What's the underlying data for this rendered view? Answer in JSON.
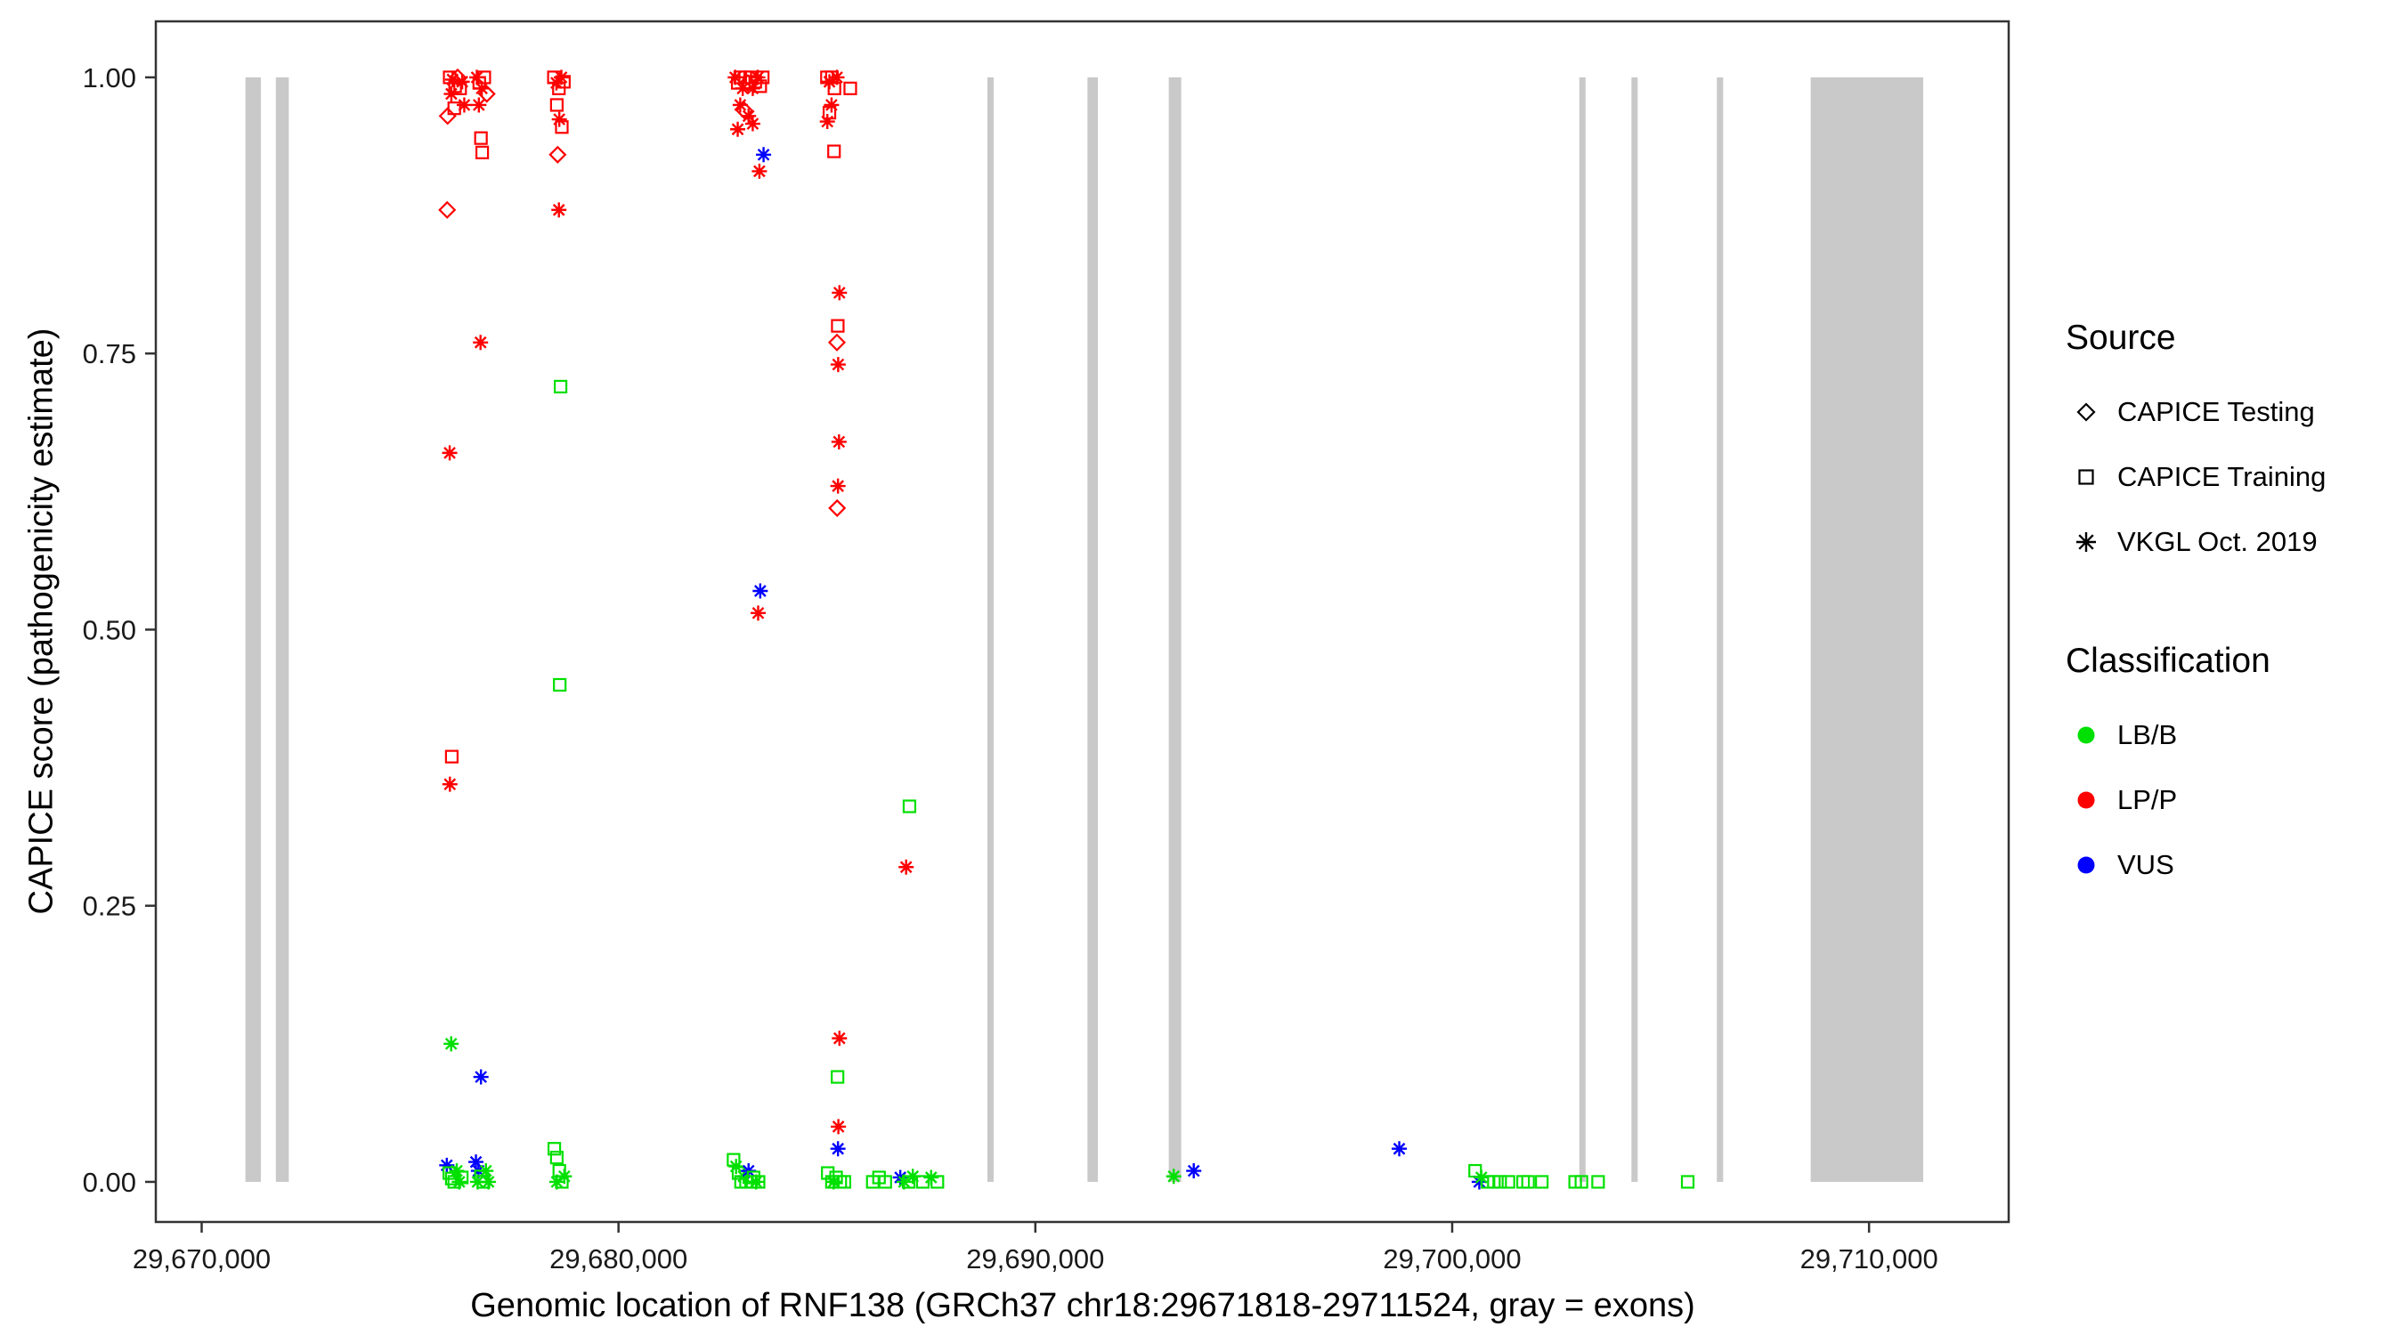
{
  "legend": {
    "source": {
      "title": "Source",
      "items": [
        {
          "label": "CAPICE Testing",
          "shape": "diamond"
        },
        {
          "label": "CAPICE Training",
          "shape": "square"
        },
        {
          "label": "VKGL Oct. 2019",
          "shape": "asterisk"
        }
      ]
    },
    "classification": {
      "title": "Classification",
      "items": [
        {
          "label": "LB/B",
          "color": "#00E000"
        },
        {
          "label": "LP/P",
          "color": "#FF0000"
        },
        {
          "label": "VUS",
          "color": "#0000FF"
        }
      ]
    }
  },
  "chart_data": {
    "type": "scatter",
    "title": "",
    "xlabel": "Genomic location of RNF138 (GRCh37 chr18:29671818-29711524, gray = exons)",
    "ylabel": "CAPICE score (pathogenicity estimate)",
    "x_domain": [
      29668900,
      29713350
    ],
    "y_domain": [
      -0.0363,
      1.0507
    ],
    "x_ticks": [
      {
        "value": 29670000,
        "label": "29,670,000"
      },
      {
        "value": 29680000,
        "label": "29,680,000"
      },
      {
        "value": 29690000,
        "label": "29,690,000"
      },
      {
        "value": 29700000,
        "label": "29,700,000"
      },
      {
        "value": 29710000,
        "label": "29,710,000"
      }
    ],
    "y_ticks": [
      {
        "value": 0.0,
        "label": "0.00"
      },
      {
        "value": 0.25,
        "label": "0.25"
      },
      {
        "value": 0.5,
        "label": "0.50"
      },
      {
        "value": 0.75,
        "label": "0.75"
      },
      {
        "value": 1.0,
        "label": "1.00"
      }
    ],
    "grid": false,
    "legend_position": "right",
    "exon_color": "#C9C9C9",
    "shape_by_source": {
      "testing": "diamond",
      "training": "square",
      "vkgl": "asterisk"
    },
    "color_by_class": {
      "LB/B": "#00E000",
      "LP/P": "#FF0000",
      "VUS": "#0000FF"
    },
    "exons": [
      [
        29671050,
        29671420
      ],
      [
        29671780,
        29672090
      ],
      [
        29688850,
        29689000
      ],
      [
        29691250,
        29691500
      ],
      [
        29693200,
        29693500
      ],
      [
        29703050,
        29703200
      ],
      [
        29704300,
        29704450
      ],
      [
        29706350,
        29706500
      ],
      [
        29708600,
        29711300
      ]
    ],
    "point_fields": [
      "genomic_position",
      "capice_score",
      "source",
      "classification"
    ],
    "points": [
      [
        29675950,
        1.0,
        "training",
        "LP/P"
      ],
      [
        29676020,
        0.998,
        "vkgl",
        "LP/P"
      ],
      [
        29676080,
        0.992,
        "training",
        "LP/P"
      ],
      [
        29676140,
        1.0,
        "testing",
        "LP/P"
      ],
      [
        29675990,
        0.985,
        "vkgl",
        "LP/P"
      ],
      [
        29676200,
        0.99,
        "training",
        "LP/P"
      ],
      [
        29676250,
        0.996,
        "vkgl",
        "LP/P"
      ],
      [
        29675900,
        0.965,
        "testing",
        "LP/P"
      ],
      [
        29676300,
        0.975,
        "vkgl",
        "LP/P"
      ],
      [
        29676060,
        0.972,
        "training",
        "LP/P"
      ],
      [
        29675890,
        0.88,
        "testing",
        "LP/P"
      ],
      [
        29675950,
        0.66,
        "vkgl",
        "LP/P"
      ],
      [
        29676000,
        0.385,
        "training",
        "LP/P"
      ],
      [
        29675955,
        0.36,
        "vkgl",
        "LP/P"
      ],
      [
        29675985,
        0.125,
        "vkgl",
        "LB/B"
      ],
      [
        29675880,
        0.015,
        "vkgl",
        "VUS"
      ],
      [
        29675940,
        0.008,
        "training",
        "LB/B"
      ],
      [
        29676000,
        0.003,
        "training",
        "LB/B"
      ],
      [
        29676060,
        0.0,
        "training",
        "LB/B"
      ],
      [
        29676120,
        0.01,
        "vkgl",
        "LB/B"
      ],
      [
        29676180,
        0.0,
        "vkgl",
        "LB/B"
      ],
      [
        29676240,
        0.004,
        "training",
        "LB/B"
      ],
      [
        29676600,
        1.0,
        "vkgl",
        "LP/P"
      ],
      [
        29676660,
        0.995,
        "training",
        "LP/P"
      ],
      [
        29676720,
        0.99,
        "vkgl",
        "LP/P"
      ],
      [
        29676780,
        1.0,
        "training",
        "LP/P"
      ],
      [
        29676840,
        0.985,
        "testing",
        "LP/P"
      ],
      [
        29676650,
        0.975,
        "vkgl",
        "LP/P"
      ],
      [
        29676700,
        0.945,
        "training",
        "LP/P"
      ],
      [
        29676730,
        0.932,
        "training",
        "LP/P"
      ],
      [
        29676690,
        0.76,
        "vkgl",
        "LP/P"
      ],
      [
        29676700,
        0.095,
        "vkgl",
        "VUS"
      ],
      [
        29676580,
        0.018,
        "vkgl",
        "VUS"
      ],
      [
        29676640,
        0.01,
        "vkgl",
        "VUS"
      ],
      [
        29676700,
        0.005,
        "training",
        "LB/B"
      ],
      [
        29676760,
        0.0,
        "training",
        "LB/B"
      ],
      [
        29676820,
        0.01,
        "vkgl",
        "LB/B"
      ],
      [
        29676880,
        0.0,
        "vkgl",
        "LB/B"
      ],
      [
        29676620,
        0.0,
        "vkgl",
        "LB/B"
      ],
      [
        29678450,
        1.0,
        "training",
        "LP/P"
      ],
      [
        29678510,
        0.995,
        "vkgl",
        "LP/P"
      ],
      [
        29678570,
        0.99,
        "training",
        "LP/P"
      ],
      [
        29678630,
        1.0,
        "vkgl",
        "LP/P"
      ],
      [
        29678690,
        0.996,
        "training",
        "LP/P"
      ],
      [
        29678520,
        0.975,
        "training",
        "LP/P"
      ],
      [
        29678580,
        0.962,
        "vkgl",
        "LP/P"
      ],
      [
        29678640,
        0.955,
        "training",
        "LP/P"
      ],
      [
        29678540,
        0.93,
        "testing",
        "LP/P"
      ],
      [
        29678570,
        0.88,
        "vkgl",
        "LP/P"
      ],
      [
        29678610,
        0.72,
        "training",
        "LB/B"
      ],
      [
        29678590,
        0.45,
        "training",
        "LB/B"
      ],
      [
        29678460,
        0.03,
        "training",
        "LB/B"
      ],
      [
        29678520,
        0.022,
        "training",
        "LB/B"
      ],
      [
        29678580,
        0.01,
        "training",
        "LB/B"
      ],
      [
        29678640,
        0.0,
        "training",
        "LB/B"
      ],
      [
        29678700,
        0.005,
        "vkgl",
        "LB/B"
      ],
      [
        29678520,
        0.0,
        "vkgl",
        "LB/B"
      ],
      [
        29682800,
        1.0,
        "vkgl",
        "LP/P"
      ],
      [
        29682860,
        0.995,
        "training",
        "LP/P"
      ],
      [
        29682920,
        1.0,
        "training",
        "LP/P"
      ],
      [
        29682980,
        0.99,
        "vkgl",
        "LP/P"
      ],
      [
        29683040,
        1.0,
        "training",
        "LP/P"
      ],
      [
        29683100,
        0.995,
        "testing",
        "LP/P"
      ],
      [
        29683160,
        1.0,
        "training",
        "LP/P"
      ],
      [
        29683220,
        0.99,
        "vkgl",
        "LP/P"
      ],
      [
        29683280,
        0.996,
        "training",
        "LP/P"
      ],
      [
        29683340,
        1.0,
        "vkgl",
        "LP/P"
      ],
      [
        29683400,
        0.992,
        "training",
        "LP/P"
      ],
      [
        29683460,
        1.0,
        "training",
        "LP/P"
      ],
      [
        29682920,
        0.975,
        "vkgl",
        "LP/P"
      ],
      [
        29683020,
        0.97,
        "testing",
        "LP/P"
      ],
      [
        29683120,
        0.965,
        "vkgl",
        "LP/P"
      ],
      [
        29683220,
        0.958,
        "vkgl",
        "LP/P"
      ],
      [
        29682860,
        0.953,
        "vkgl",
        "LP/P"
      ],
      [
        29683480,
        0.93,
        "vkgl",
        "VUS"
      ],
      [
        29683380,
        0.915,
        "vkgl",
        "LP/P"
      ],
      [
        29683400,
        0.535,
        "vkgl",
        "VUS"
      ],
      [
        29683350,
        0.515,
        "vkgl",
        "LP/P"
      ],
      [
        29682760,
        0.02,
        "training",
        "LB/B"
      ],
      [
        29682820,
        0.014,
        "vkgl",
        "LB/B"
      ],
      [
        29682880,
        0.008,
        "training",
        "LB/B"
      ],
      [
        29682940,
        0.0,
        "training",
        "LB/B"
      ],
      [
        29683000,
        0.005,
        "vkgl",
        "LB/B"
      ],
      [
        29683060,
        0.0,
        "training",
        "LB/B"
      ],
      [
        29683120,
        0.01,
        "vkgl",
        "VUS"
      ],
      [
        29683180,
        0.0,
        "training",
        "LB/B"
      ],
      [
        29683240,
        0.004,
        "training",
        "LB/B"
      ],
      [
        29683300,
        0.0,
        "vkgl",
        "LB/B"
      ],
      [
        29683360,
        0.0,
        "training",
        "LB/B"
      ],
      [
        29685000,
        1.0,
        "training",
        "LP/P"
      ],
      [
        29685060,
        0.996,
        "vkgl",
        "LP/P"
      ],
      [
        29685120,
        1.0,
        "training",
        "LP/P"
      ],
      [
        29685180,
        0.99,
        "training",
        "LP/P"
      ],
      [
        29685240,
        1.0,
        "vkgl",
        "LP/P"
      ],
      [
        29685110,
        0.975,
        "vkgl",
        "LP/P"
      ],
      [
        29685060,
        0.968,
        "training",
        "LP/P"
      ],
      [
        29685010,
        0.96,
        "vkgl",
        "LP/P"
      ],
      [
        29685560,
        0.99,
        "training",
        "LP/P"
      ],
      [
        29685170,
        0.933,
        "training",
        "LP/P"
      ],
      [
        29685300,
        0.805,
        "vkgl",
        "LP/P"
      ],
      [
        29685260,
        0.775,
        "training",
        "LP/P"
      ],
      [
        29685240,
        0.76,
        "testing",
        "LP/P"
      ],
      [
        29685270,
        0.74,
        "vkgl",
        "LP/P"
      ],
      [
        29685290,
        0.67,
        "vkgl",
        "LP/P"
      ],
      [
        29685265,
        0.63,
        "vkgl",
        "LP/P"
      ],
      [
        29685245,
        0.61,
        "testing",
        "LP/P"
      ],
      [
        29685300,
        0.13,
        "vkgl",
        "LP/P"
      ],
      [
        29685255,
        0.095,
        "training",
        "LB/B"
      ],
      [
        29685275,
        0.05,
        "vkgl",
        "LP/P"
      ],
      [
        29685265,
        0.03,
        "vkgl",
        "VUS"
      ],
      [
        29685020,
        0.008,
        "training",
        "LB/B"
      ],
      [
        29685120,
        0.0,
        "training",
        "LB/B"
      ],
      [
        29685220,
        0.004,
        "training",
        "LB/B"
      ],
      [
        29685320,
        0.0,
        "training",
        "LB/B"
      ],
      [
        29685420,
        0.0,
        "training",
        "LB/B"
      ],
      [
        29685160,
        0.0,
        "vkgl",
        "LB/B"
      ],
      [
        29686100,
        0.0,
        "training",
        "LB/B"
      ],
      [
        29686250,
        0.004,
        "training",
        "LB/B"
      ],
      [
        29686400,
        0.0,
        "training",
        "LB/B"
      ],
      [
        29686980,
        0.34,
        "training",
        "LB/B"
      ],
      [
        29686900,
        0.285,
        "vkgl",
        "LP/P"
      ],
      [
        29686760,
        0.004,
        "vkgl",
        "VUS"
      ],
      [
        29686850,
        0.0,
        "vkgl",
        "LB/B"
      ],
      [
        29686960,
        0.0,
        "training",
        "LB/B"
      ],
      [
        29687060,
        0.005,
        "vkgl",
        "LB/B"
      ],
      [
        29687300,
        0.0,
        "training",
        "LB/B"
      ],
      [
        29687500,
        0.004,
        "vkgl",
        "LB/B"
      ],
      [
        29687650,
        0.0,
        "training",
        "LB/B"
      ],
      [
        29693320,
        0.005,
        "vkgl",
        "LB/B"
      ],
      [
        29693800,
        0.01,
        "vkgl",
        "VUS"
      ],
      [
        29698730,
        0.03,
        "vkgl",
        "VUS"
      ],
      [
        29700550,
        0.01,
        "training",
        "LB/B"
      ],
      [
        29700650,
        0.0,
        "vkgl",
        "VUS"
      ],
      [
        29700700,
        0.004,
        "vkgl",
        "LB/B"
      ],
      [
        29700850,
        0.0,
        "training",
        "LB/B"
      ],
      [
        29701000,
        0.0,
        "training",
        "LB/B"
      ],
      [
        29701150,
        0.0,
        "training",
        "LB/B"
      ],
      [
        29701350,
        0.0,
        "training",
        "LB/B"
      ],
      [
        29701700,
        0.0,
        "training",
        "LB/B"
      ],
      [
        29701820,
        0.0,
        "training",
        "LB/B"
      ],
      [
        29702150,
        0.0,
        "training",
        "LB/B"
      ],
      [
        29702950,
        0.0,
        "training",
        "LB/B"
      ],
      [
        29703100,
        0.0,
        "training",
        "LB/B"
      ],
      [
        29703500,
        0.0,
        "training",
        "LB/B"
      ],
      [
        29705650,
        0.0,
        "training",
        "LB/B"
      ]
    ]
  }
}
